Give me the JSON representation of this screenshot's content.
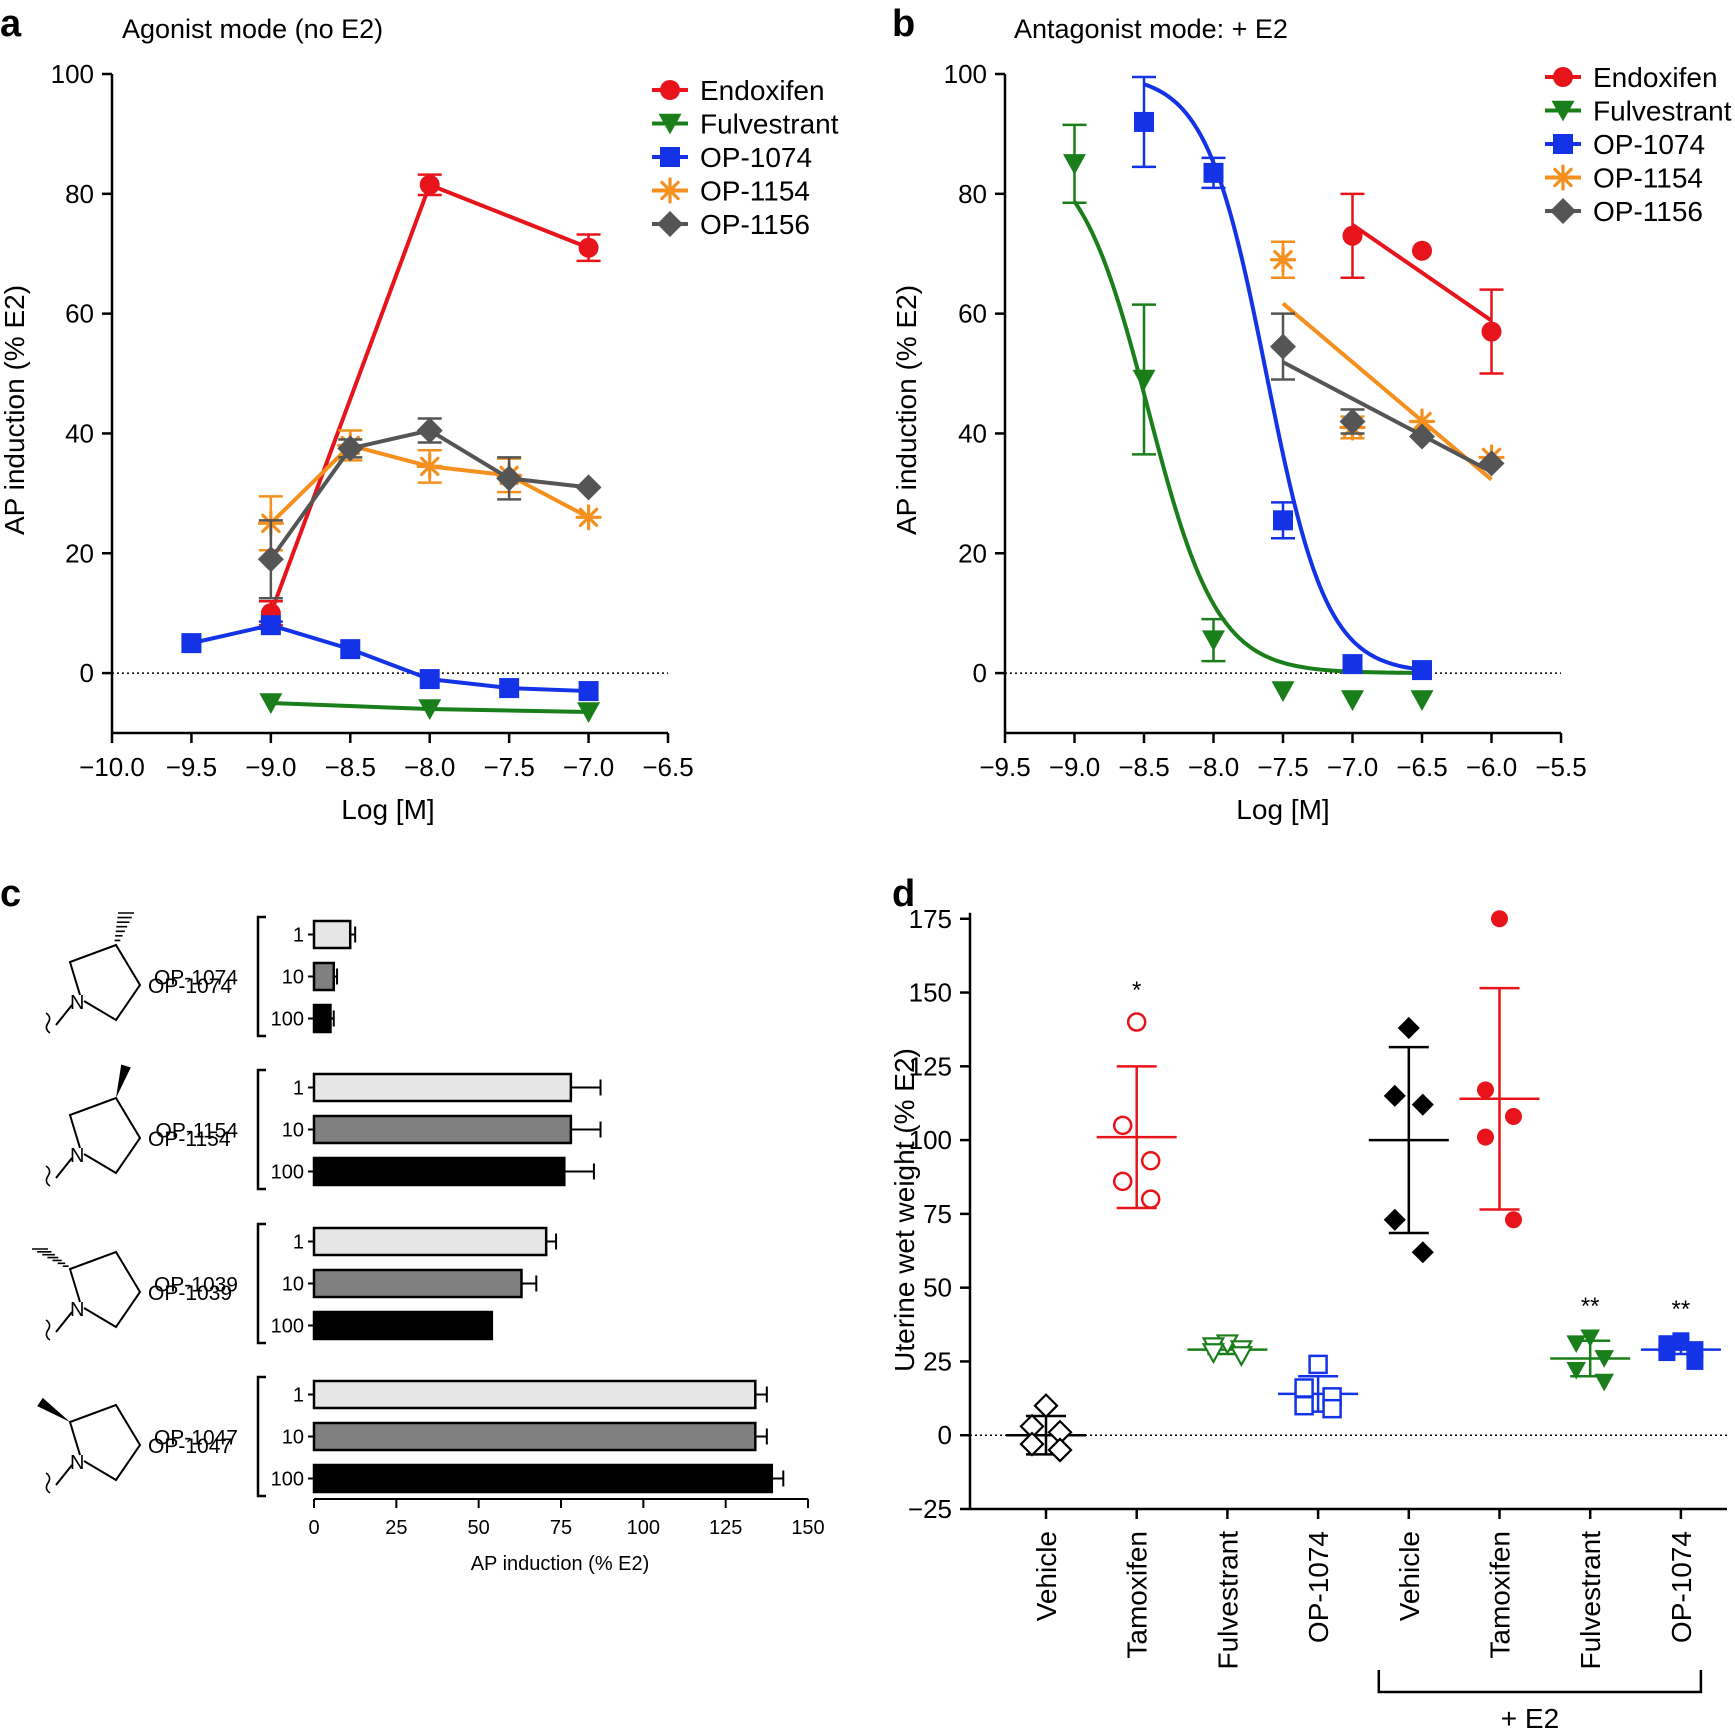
{
  "panels": {
    "a": {
      "letter": "a",
      "title": "Agonist mode (no E2)"
    },
    "b": {
      "letter": "b",
      "title": "Antagonist mode: + E2"
    },
    "c": {
      "letter": "c"
    },
    "d": {
      "letter": "d"
    }
  },
  "colors": {
    "Endoxifen": "#e8141c",
    "Fulvestrant": "#1a7f1a",
    "OP-1074": "#1433e6",
    "OP-1154": "#f5901e",
    "OP-1156": "#555555",
    "bar_1": "#e6e6e6",
    "bar_10": "#808080",
    "bar_100": "#000000"
  },
  "chart_data": [
    {
      "id": "a",
      "type": "line",
      "title": "Agonist mode (no E2)",
      "xlabel": "Log [M]",
      "ylabel": "AP induction (% E2)",
      "xlim": [
        -10.0,
        -6.5
      ],
      "ylim": [
        -10,
        100
      ],
      "xticks": [
        "−10.0",
        "−9.5",
        "−9.0",
        "−8.5",
        "−8.0",
        "−7.5",
        "−7.0",
        "−6.5"
      ],
      "yticks": [
        "0",
        "20",
        "40",
        "60",
        "80",
        "100"
      ],
      "legend_position": "top-right",
      "series": [
        {
          "name": "Endoxifen",
          "marker": "circle",
          "fit": "connect",
          "x": [
            -9.0,
            -8.0,
            -7.0
          ],
          "y": [
            10,
            81.5,
            71
          ],
          "err": [
            2,
            1.7,
            2.2
          ]
        },
        {
          "name": "Fulvestrant",
          "marker": "triangle-down",
          "fit": "connect",
          "x": [
            -9.0,
            -8.0,
            -7.0
          ],
          "y": [
            -5,
            -6,
            -6.5
          ],
          "err": [
            0,
            0,
            0
          ]
        },
        {
          "name": "OP-1074",
          "marker": "square",
          "fit": "connect",
          "x": [
            -9.5,
            -9.0,
            -8.5,
            -8.0,
            -7.5,
            -7.0
          ],
          "y": [
            5,
            8,
            4,
            -1,
            -2.5,
            -3
          ],
          "err": [
            0,
            0.6,
            0,
            0,
            0,
            0
          ]
        },
        {
          "name": "OP-1154",
          "marker": "asterisk",
          "fit": "connect",
          "x": [
            -9.0,
            -8.5,
            -8.0,
            -7.5,
            -7.0
          ],
          "y": [
            25,
            38,
            34.5,
            33,
            26
          ],
          "err": [
            4.5,
            2.5,
            2.7,
            2.8,
            0
          ]
        },
        {
          "name": "OP-1156",
          "marker": "diamond",
          "fit": "connect",
          "x": [
            -9.0,
            -8.5,
            -8.0,
            -7.5,
            -7.0
          ],
          "y": [
            19,
            37.5,
            40.5,
            32.5,
            31
          ],
          "err": [
            6.5,
            1.5,
            2,
            3.5,
            0
          ]
        }
      ]
    },
    {
      "id": "b",
      "type": "line",
      "title": "Antagonist mode: + E2",
      "xlabel": "Log [M]",
      "ylabel": "AP induction (% E2)",
      "xlim": [
        -9.5,
        -5.5
      ],
      "ylim": [
        -10,
        100
      ],
      "xticks": [
        "−9.5",
        "−9.0",
        "−8.5",
        "−8.0",
        "−7.5",
        "−7.0",
        "−6.5",
        "−6.0",
        "−5.5"
      ],
      "yticks": [
        "0",
        "20",
        "40",
        "60",
        "80",
        "100"
      ],
      "legend_position": "top-right",
      "series": [
        {
          "name": "Endoxifen",
          "marker": "circle",
          "fit": "linear",
          "fit_x": [
            -7.0,
            -6.0
          ],
          "x": [
            -7.0,
            -6.5,
            -6.0
          ],
          "y": [
            73,
            70.5,
            57
          ],
          "err": [
            7,
            0,
            7
          ]
        },
        {
          "name": "Fulvestrant",
          "marker": "triangle-down",
          "fit": "sigmoid",
          "fit_x": [
            -9.0,
            -6.5
          ],
          "top": 88,
          "bottom": 0,
          "logic50": -8.47,
          "hill": 1.75,
          "x": [
            -9.0,
            -8.5,
            -8.0,
            -7.5,
            -7.0,
            -6.5
          ],
          "y": [
            85,
            49,
            5.5,
            -3,
            -4.5,
            -4.5
          ],
          "err": [
            6.5,
            12.5,
            3.5,
            0,
            0,
            0
          ]
        },
        {
          "name": "OP-1074",
          "marker": "square",
          "fit": "sigmoid",
          "fit_x": [
            -8.5,
            -6.5
          ],
          "top": 100,
          "bottom": 0,
          "logic50": -7.62,
          "hill": 2.0,
          "x": [
            -8.5,
            -8.0,
            -7.5,
            -7.0,
            -6.5
          ],
          "y": [
            92,
            83.5,
            25.5,
            1.5,
            0.5
          ],
          "err": [
            7.5,
            2.5,
            3,
            0,
            0
          ]
        },
        {
          "name": "OP-1154",
          "marker": "asterisk",
          "fit": "linear",
          "fit_x": [
            -7.5,
            -6.0
          ],
          "x": [
            -7.5,
            -7.0,
            -6.5,
            -6.0
          ],
          "y": [
            69,
            41,
            42,
            36
          ],
          "err": [
            3,
            1.8,
            0,
            0
          ]
        },
        {
          "name": "OP-1156",
          "marker": "diamond",
          "fit": "linear",
          "fit_x": [
            -7.5,
            -6.0
          ],
          "x": [
            -7.5,
            -7.0,
            -6.5,
            -6.0
          ],
          "y": [
            54.5,
            42,
            39.5,
            35
          ],
          "err": [
            5.5,
            2,
            0,
            0
          ]
        }
      ]
    },
    {
      "id": "c",
      "type": "bar",
      "orientation": "horizontal",
      "xlabel": "AP induction (% E2)",
      "xlim": [
        0,
        150
      ],
      "xticks": [
        "0",
        "25",
        "50",
        "75",
        "100",
        "125",
        "150"
      ],
      "groups": [
        {
          "name": "OP-1074",
          "levels": [
            "1",
            "10",
            "100"
          ],
          "values": [
            11,
            6,
            5
          ],
          "err": [
            1.5,
            1,
            1
          ]
        },
        {
          "name": "OP-1154",
          "levels": [
            "1",
            "10",
            "100"
          ],
          "values": [
            78,
            78,
            76
          ],
          "err": [
            9,
            9,
            9
          ]
        },
        {
          "name": "OP-1039",
          "levels": [
            "1",
            "10",
            "100"
          ],
          "values": [
            70.5,
            63,
            54
          ],
          "err": [
            3,
            4.5,
            0
          ]
        },
        {
          "name": "OP-1047",
          "levels": [
            "1",
            "10",
            "100"
          ],
          "values": [
            134,
            134,
            139
          ],
          "err": [
            3.5,
            3.5,
            3.5
          ]
        }
      ]
    },
    {
      "id": "d",
      "type": "scatter",
      "ylabel": "Uterine wet weight (% E2)",
      "ylim": [
        -25,
        180
      ],
      "yticks": [
        "−25",
        "0",
        "25",
        "50",
        "75",
        "100",
        "125",
        "150",
        "175"
      ],
      "bracket_label": "+ E2",
      "groups": [
        {
          "label": "Vehicle",
          "color": "#000000",
          "marker": "diamond",
          "filled": false,
          "points": [
            10,
            3,
            1,
            -3,
            -5
          ],
          "mean": 0,
          "sd": 6.5,
          "sig": ""
        },
        {
          "label": "Tamoxifen",
          "color": "#e8141c",
          "marker": "circle",
          "filled": false,
          "points": [
            140,
            105,
            93,
            86,
            80
          ],
          "mean": 101,
          "sd": 24,
          "sig": "*"
        },
        {
          "label": "Fulvestrant",
          "color": "#1a7f1a",
          "marker": "triangle-down",
          "filled": false,
          "points": [
            31,
            30,
            29,
            28,
            27
          ],
          "mean": 29,
          "sd": 1.5,
          "sig": ""
        },
        {
          "label": "OP-1074",
          "color": "#1433e6",
          "marker": "square",
          "filled": false,
          "points": [
            24,
            16,
            13,
            10,
            9
          ],
          "mean": 14,
          "sd": 6,
          "sig": ""
        },
        {
          "label": "Vehicle",
          "color": "#000000",
          "marker": "diamond",
          "filled": true,
          "points": [
            138,
            115,
            112,
            73,
            62
          ],
          "mean": 100,
          "sd": 31.5,
          "sig": ""
        },
        {
          "label": "Tamoxifen",
          "color": "#e8141c",
          "marker": "circle",
          "filled": true,
          "points": [
            175,
            117,
            108,
            101,
            73
          ],
          "mean": 114,
          "sd": 37.5,
          "sig": ""
        },
        {
          "label": "Fulvestrant",
          "color": "#1a7f1a",
          "marker": "triangle-down",
          "filled": true,
          "points": [
            33,
            31,
            26,
            22,
            18
          ],
          "mean": 26,
          "sd": 6,
          "sig": "**"
        },
        {
          "label": "OP-1074",
          "color": "#1433e6",
          "marker": "square",
          "filled": true,
          "points": [
            32,
            31,
            29,
            28,
            25
          ],
          "mean": 29,
          "sd": 1.5,
          "sig": "**"
        }
      ]
    }
  ]
}
